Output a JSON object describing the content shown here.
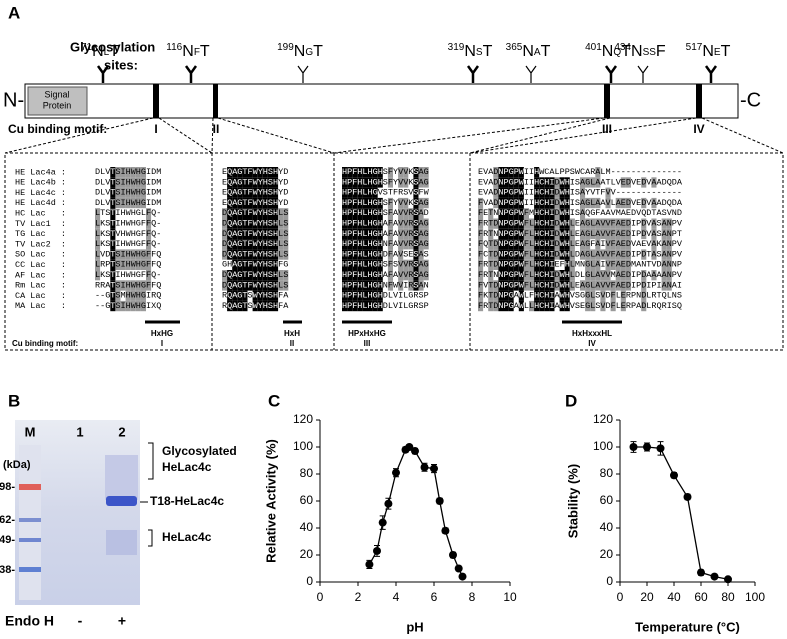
{
  "panel_a": {
    "label": "A",
    "glycosylation_label": [
      "Glycosylation",
      "sites:"
    ],
    "sites": [
      {
        "number": "71",
        "n": "N",
        "middle": "L",
        "t": "T"
      },
      {
        "number": "116",
        "n": "N",
        "middle": "F",
        "t": "T"
      },
      {
        "number": "199",
        "n": "N",
        "middle": "G",
        "t": "T"
      },
      {
        "number": "319",
        "n": "N",
        "middle": "S",
        "t": "T"
      },
      {
        "number": "365",
        "n": "N",
        "middle": "A",
        "t": "T"
      },
      {
        "number": "401",
        "n": "N",
        "middle": "Q",
        "t": "T"
      },
      {
        "number": "434",
        "n": "N",
        "middle": "SS",
        "t": "F"
      },
      {
        "number": "517",
        "n": "N",
        "middle": "E",
        "t": "T"
      }
    ],
    "n_terminus": "N-",
    "c_terminus": "-C",
    "signal": [
      "Signal",
      "Protein"
    ],
    "cu_motif_label": "Cu binding motif:",
    "motif_numerals": [
      "I",
      "II",
      "III",
      "IV"
    ],
    "alignment": {
      "rows": [
        {
          "name": "HE Lac4a :",
          "blocks": [
            "DLVTSIHWHGIDM",
            "EQAGTFWYHSHYD",
            "HPFHLHGHSFYVVKSAG",
            "EVADNPGPWIIHWCALPPSWCARALM--------------"
          ]
        },
        {
          "name": "HE Lac4b :",
          "blocks": [
            "DLVTSIHWHGIDM",
            "EQAGTFWYHSHYD",
            "HPFHLHGHSFYVVKSAG",
            "EVADNPGPWIIHCHIDWHISAGLAATLVEDVEDVAADQDA"
          ]
        },
        {
          "name": "HE Lac4c :",
          "blocks": [
            "DLVTSIHWHGIDM",
            "EQAGTFWYHSHYD",
            "HPFHLHGVSTFRSVSFW",
            "EVADNPGPWIIHCHIDWHISAYVTFVV-------------"
          ]
        },
        {
          "name": "HE Lac4d :",
          "blocks": [
            "DLVTSIHWHGIDM",
            "EQAGTFWYHSHYD",
            "HPFHLHGHSFYVVKSAG",
            "FVADNPGPWIIHCHIDWHISAGLAAVLAEDVEDVAADQDA"
          ]
        },
        {
          "name": "HC Lac   :",
          "blocks": [
            "LTSTIHWHGLFQ-",
            "DQAGTFWYHSHLS",
            "HPFHLHGHSFAVVRSAD",
            "FETNNPGPWFMHCHIDWHISAQGFAAVMAEDVQDTASVND"
          ]
        },
        {
          "name": "TV Lac1  :",
          "blocks": [
            "LKSTIHWHGFFQ-",
            "DQAGTFWYHSHLS",
            "HPFHLHGHAFAVVRSAG",
            "FRTDNPGPWFLHCHIDWHLEAGLAVVFAEDIPDVASANPV"
          ]
        },
        {
          "name": "TG Lac   :",
          "blocks": [
            "LKSTVHWHGFFQ-",
            "DQAGTFWYHSHLS",
            "HPFHLHGHAFAVVRSAG",
            "FRTNNPGPWFLHCHIDWHLEAGLAVVFAEDIPDVASANPT"
          ]
        },
        {
          "name": "TV Lac2  :",
          "blocks": [
            "LKSTIHWHGFFQ-",
            "DQAGTFWYHSHLS",
            "HPFHLHGHNFAVVRSAG",
            "FQTDNPGPWFLHCHIDWHLEAGFAIVFAEDVAEVAKANPV"
          ]
        },
        {
          "name": "SO Lac   :",
          "blocks": [
            "LVDTSIHWHGFFQ",
            "DQAGTFWYHSHLS",
            "HPFHLHGHDFAVSESAS",
            "FCTDNPGPWFLHCHIDWHLDAGLAVVFAEDIPDTASANPV"
          ]
        },
        {
          "name": "CC Lac   :",
          "blocks": [
            "LRPTSIHWHGFFQ",
            "GHAGTFWYHSHFG",
            "HPFHLHGHSFSVVRSAG",
            "FRTDNPGPWFLHCHIEFHLMNGLAIVFAEDMANTVDANNP"
          ]
        },
        {
          "name": "AF Lac   :",
          "blocks": [
            "LKSTIHWHGFFQ-",
            "DQAGTFWYHSHLS",
            "HPFHLHGHAFAVVRSAG",
            "FRTNNPGPWFLHCHIDWHLDLGLAVVMAEDIPDAAAANPV"
          ]
        },
        {
          "name": "Rm Lac   :",
          "blocks": [
            "RRATSIHWHGFFQ",
            "DQAGTFWYHSHLS",
            "HPFHLHGHNFWVIRSAN",
            "FVTDNPGPWFLHCHIDWHLEAGLAVVFAEDIPDIPIANAI"
          ]
        },
        {
          "name": "CA Lac   :",
          "blocks": [
            "--GTSMHWHGIRQ",
            "RQAGTSWYHSHFA",
            "HPFHLHGHDLVILGRSP",
            "FKTDNPGAWLFHCHIAWHVSGGLSVDFLERPNDLRTQLNS"
          ]
        },
        {
          "name": "MA Lac   :",
          "blocks": [
            "--GTSIHWHGIXQ",
            "RQAGTSWYHSHFA",
            "HPFHLHGHDLVILGRSP",
            "FRTDNPGAWLLHCHIAWHVSEGLSVDFLERPADLRQRISQ"
          ]
        }
      ],
      "motifs": [
        {
          "pattern": "HxHG",
          "numeral": "I"
        },
        {
          "pattern": "HxH",
          "numeral": "II"
        },
        {
          "pattern": "HPxHxHG",
          "numeral": "III"
        },
        {
          "pattern": "HxHxxxHL",
          "numeral": "IV"
        }
      ],
      "cu_motif_label": "Cu binding motif:"
    }
  },
  "panel_b": {
    "label": "B",
    "lanes": [
      "M",
      "1",
      "2"
    ],
    "unit": "(kDa)",
    "markers": [
      "98-",
      "62-",
      "49-",
      "38-"
    ],
    "annotations": [
      {
        "lines": [
          "Glycosylated",
          "HeLac4c"
        ]
      },
      {
        "lines": [
          "T18-HeLac4c"
        ]
      },
      {
        "lines": [
          "HeLac4c"
        ]
      }
    ],
    "treatment": "Endo H",
    "treatment_states": [
      "-",
      "+"
    ]
  },
  "chart_data": [
    {
      "panel": "C",
      "type": "line",
      "x_label": "pH",
      "y_label": "Relative Activity (%)",
      "color": "#000000",
      "x": [
        2.6,
        3.0,
        3.3,
        3.6,
        4.0,
        4.5,
        4.7,
        5.0,
        5.5,
        6.0,
        6.3,
        6.6,
        7.0,
        7.3,
        7.5
      ],
      "values": [
        13,
        23,
        44,
        58,
        81,
        98,
        100,
        97,
        85,
        84,
        60,
        38,
        20,
        10,
        4
      ],
      "errors": [
        3,
        4,
        5,
        4,
        3,
        2,
        1,
        2,
        3,
        3,
        2,
        2,
        2,
        1,
        1
      ],
      "xlim": [
        0,
        10
      ],
      "xticks": [
        0,
        2,
        4,
        6,
        8,
        10
      ],
      "ylim": [
        0,
        120
      ],
      "yticks": [
        0,
        20,
        40,
        60,
        80,
        100,
        120
      ]
    },
    {
      "panel": "D",
      "type": "line",
      "x_label": "Temperature (°C)",
      "y_label": "Stability (%)",
      "color": "#000000",
      "x": [
        10,
        20,
        30,
        40,
        50,
        60,
        70,
        80
      ],
      "values": [
        100,
        100,
        99,
        79,
        63,
        7,
        4,
        2
      ],
      "errors": [
        4,
        3,
        5,
        2,
        2,
        2,
        1,
        1
      ],
      "xlim": [
        0,
        100
      ],
      "xticks": [
        0,
        20,
        40,
        60,
        80,
        100
      ],
      "ylim": [
        0,
        120
      ],
      "yticks": [
        0,
        20,
        40,
        60,
        80,
        100,
        120
      ]
    }
  ]
}
